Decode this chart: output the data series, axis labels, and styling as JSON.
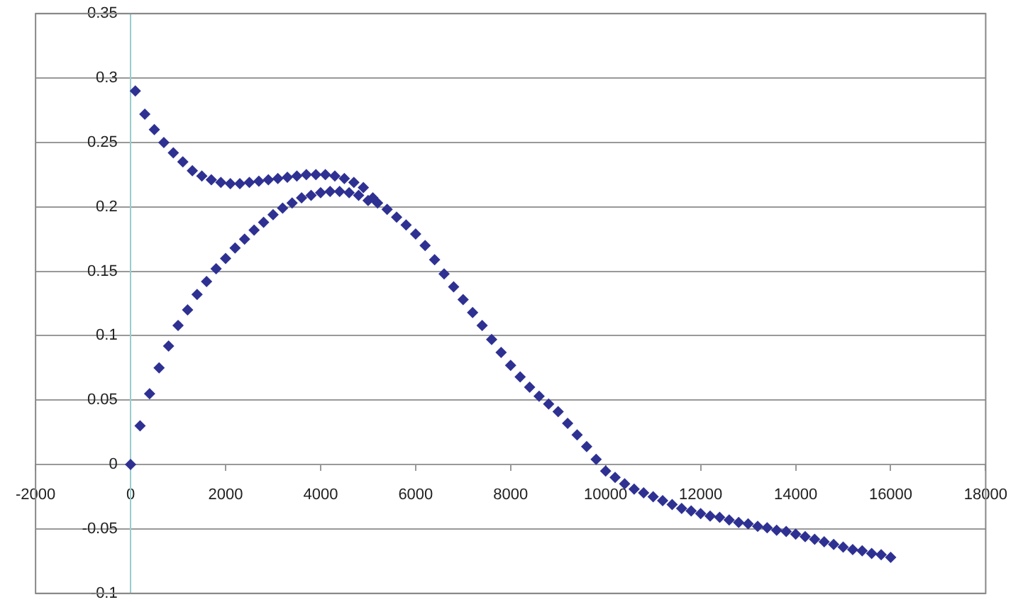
{
  "chart_data": {
    "type": "scatter",
    "marker": "diamond",
    "grid": "y",
    "xlim": [
      -2000,
      18000
    ],
    "xticks": [
      -2000,
      0,
      2000,
      4000,
      6000,
      8000,
      10000,
      12000,
      14000,
      16000,
      18000
    ],
    "ylim": [
      -0.1,
      0.35
    ],
    "yticks": [
      -0.1,
      -0.05,
      0,
      0.05,
      0.1,
      0.15,
      0.2,
      0.25,
      0.3,
      0.35
    ],
    "series": [
      {
        "color": "#2e3192",
        "x": [
          0,
          100,
          200,
          300,
          400,
          500,
          600,
          700,
          800,
          900,
          1000,
          1100,
          1200,
          1300,
          1400,
          1500,
          1600,
          1700,
          1800,
          1900,
          2000,
          2100,
          2200,
          2300,
          2400,
          2500,
          2600,
          2700,
          2800,
          2900,
          3000,
          3100,
          3200,
          3300,
          3400,
          3500,
          3600,
          3700,
          3800,
          3900,
          4000,
          4100,
          4200,
          4300,
          4400,
          4500,
          4600,
          4700,
          4800,
          4900,
          5000,
          5100,
          5200,
          5400,
          5600,
          5800,
          6000,
          6200,
          6400,
          6600,
          6800,
          7000,
          7200,
          7400,
          7600,
          7800,
          8000,
          8200,
          8400,
          8600,
          8800,
          9000,
          9200,
          9400,
          9600,
          9800,
          10000,
          10200,
          10400,
          10600,
          10800,
          11000,
          11200,
          11400,
          11600,
          11800,
          12000,
          12200,
          12400,
          12600,
          12800,
          13000,
          13200,
          13400,
          13600,
          13800,
          14000,
          14200,
          14400,
          14600,
          14800,
          15000,
          15200,
          15400,
          15600,
          15800,
          16000
        ],
        "values": [
          0,
          0.29,
          0.03,
          0.272,
          0.055,
          0.26,
          0.075,
          0.25,
          0.092,
          0.242,
          0.108,
          0.235,
          0.12,
          0.228,
          0.132,
          0.224,
          0.142,
          0.221,
          0.152,
          0.219,
          0.16,
          0.218,
          0.168,
          0.218,
          0.175,
          0.219,
          0.182,
          0.22,
          0.188,
          0.221,
          0.194,
          0.222,
          0.199,
          0.223,
          0.203,
          0.224,
          0.207,
          0.225,
          0.209,
          0.225,
          0.211,
          0.225,
          0.212,
          0.224,
          0.212,
          0.222,
          0.211,
          0.219,
          0.209,
          0.215,
          0.205,
          0.207,
          0.203,
          0.198,
          0.192,
          0.186,
          0.179,
          0.17,
          0.159,
          0.148,
          0.138,
          0.128,
          0.118,
          0.108,
          0.097,
          0.087,
          0.077,
          0.068,
          0.06,
          0.053,
          0.047,
          0.041,
          0.032,
          0.023,
          0.014,
          0.004,
          -0.005,
          -0.01,
          -0.015,
          -0.019,
          -0.022,
          -0.025,
          -0.028,
          -0.031,
          -0.034,
          -0.036,
          -0.038,
          -0.04,
          -0.041,
          -0.043,
          -0.045,
          -0.046,
          -0.048,
          -0.049,
          -0.051,
          -0.052,
          -0.054,
          -0.056,
          -0.058,
          -0.06,
          -0.062,
          -0.064,
          -0.066,
          -0.067,
          -0.069,
          -0.07,
          -0.072
        ]
      }
    ]
  }
}
